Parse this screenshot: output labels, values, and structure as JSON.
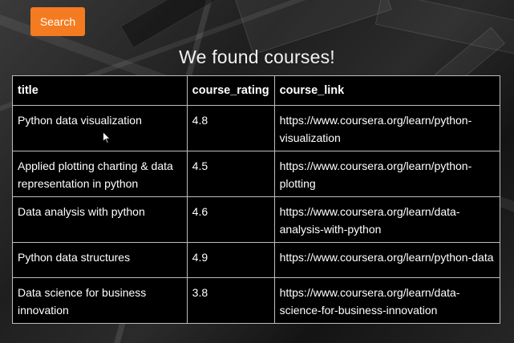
{
  "search_button": {
    "label": "Search"
  },
  "heading": "We found courses!",
  "table": {
    "columns": [
      "title",
      "course_rating",
      "course_link"
    ],
    "rows": [
      {
        "title": "Python data visualization",
        "course_rating": "4.8",
        "course_link": "https://www.coursera.org/learn/python-visualization"
      },
      {
        "title": "Applied plotting charting & data representation in python",
        "course_rating": "4.5",
        "course_link": "https://www.coursera.org/learn/python-plotting"
      },
      {
        "title": "Data analysis with python",
        "course_rating": "4.6",
        "course_link": "https://www.coursera.org/learn/data-analysis-with-python"
      },
      {
        "title": "Python data structures",
        "course_rating": "4.9",
        "course_link": "https://www.coursera.org/learn/python-data"
      },
      {
        "title": "Data science for business innovation",
        "course_rating": "3.8",
        "course_link": "https://www.coursera.org/learn/data-science-for-business-innovation"
      }
    ]
  },
  "colors": {
    "button": "#f47b20",
    "table_background": "#000000",
    "table_border": "#bdbdbd",
    "text": "#ffffff"
  }
}
